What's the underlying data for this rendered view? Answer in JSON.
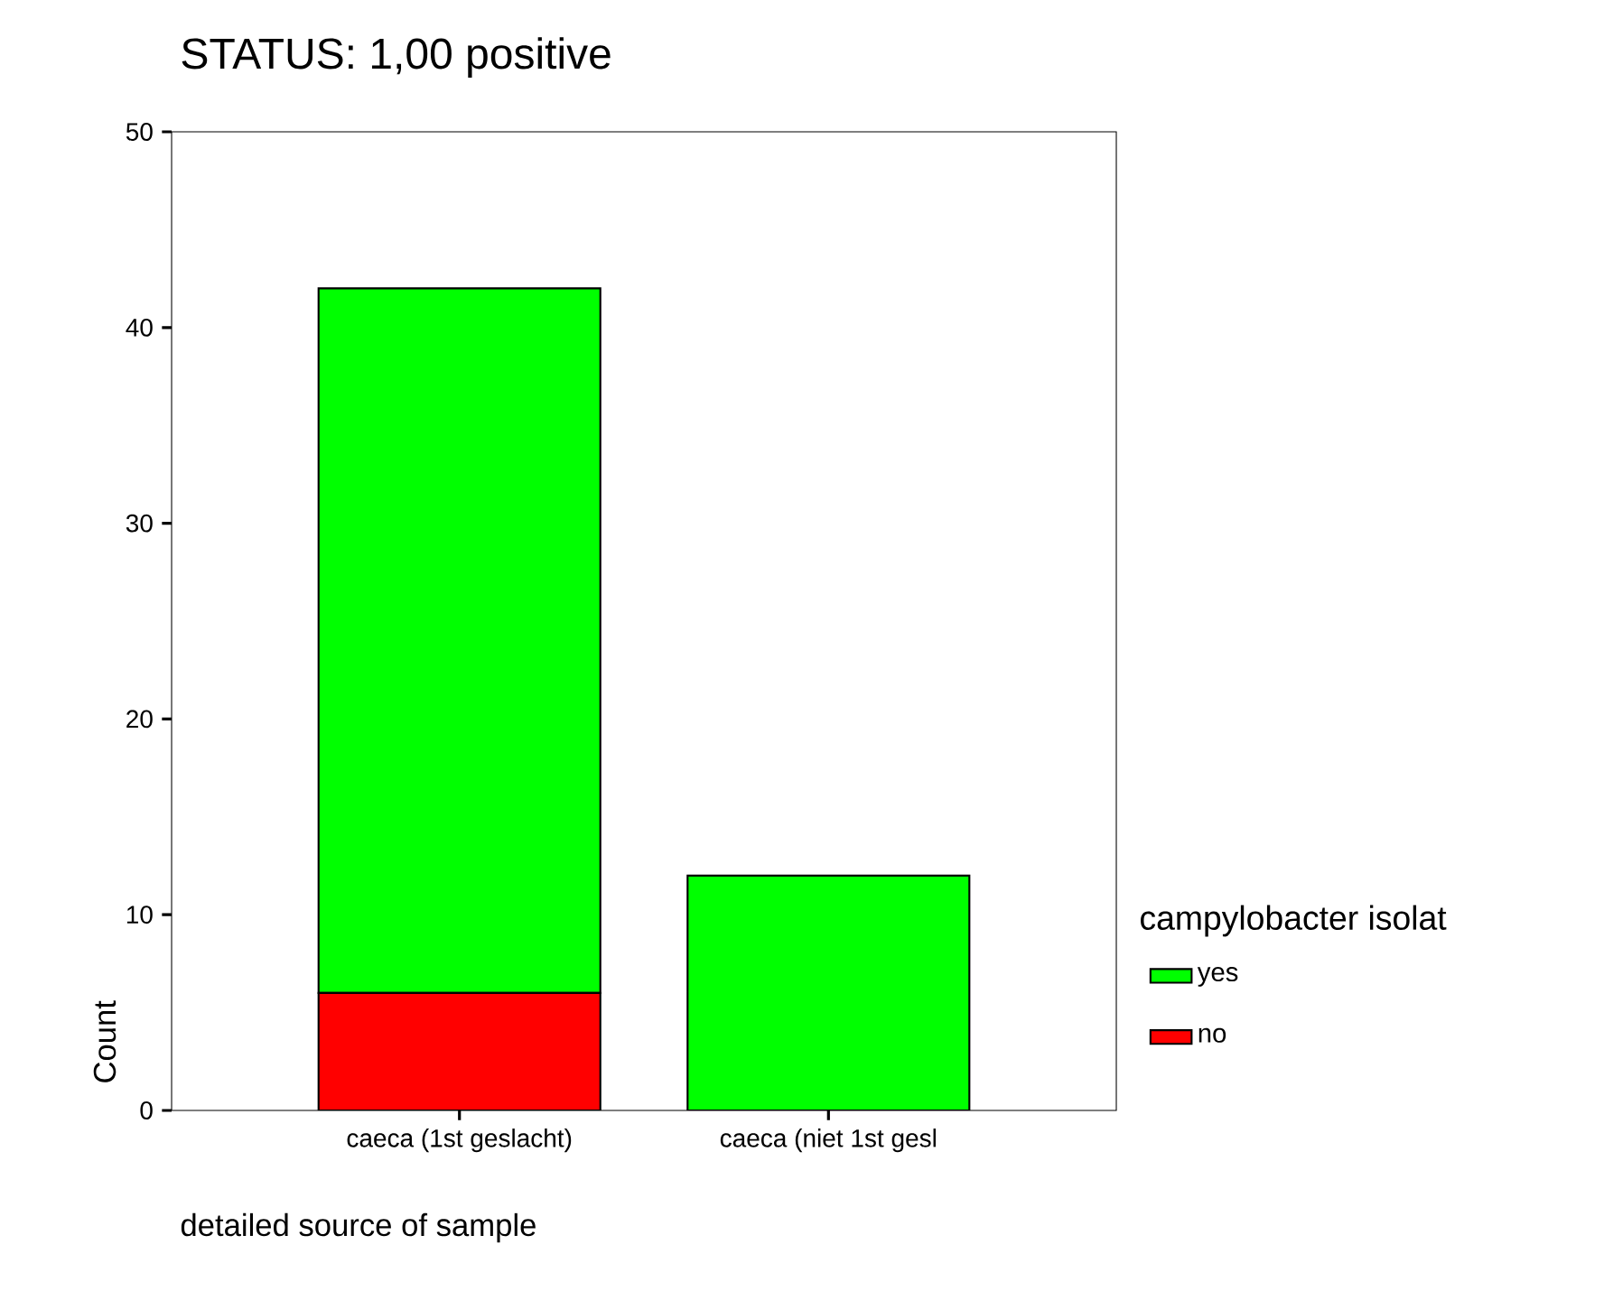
{
  "chart_data": {
    "type": "bar",
    "title": "STATUS: 1,00 positive",
    "xlabel": "detailed source of sample",
    "ylabel": "Count",
    "legend_title": "campylobacter isolat",
    "categories": [
      "caeca (1st geslacht)",
      "caeca (niet 1st gesl"
    ],
    "series": [
      {
        "name": "no",
        "color": "#ff0000",
        "values": [
          6,
          0
        ]
      },
      {
        "name": "yes",
        "color": "#00ff00",
        "values": [
          36,
          12
        ]
      }
    ],
    "stacked": true,
    "ylim": [
      0,
      50
    ],
    "yticks": [
      0,
      10,
      20,
      30,
      40,
      50
    ],
    "legend": "right"
  }
}
